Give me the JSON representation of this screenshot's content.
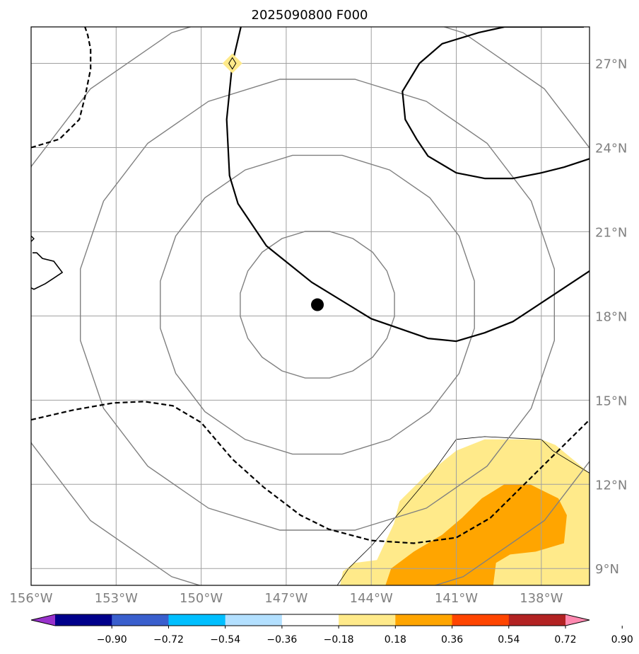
{
  "map": {
    "title": "2025090800 F000",
    "lon_range": [
      -156,
      -136.3
    ],
    "lat_range": [
      8.4,
      28.3
    ],
    "lon_gridlines": [
      -156,
      -153,
      -150,
      -147,
      -144,
      -141,
      -138
    ],
    "lat_gridlines": [
      9,
      12,
      15,
      18,
      21,
      24,
      27
    ],
    "lon_labels": [
      "156°W",
      "153°W",
      "150°W",
      "147°W",
      "144°W",
      "141°W",
      "138°W"
    ],
    "lat_labels": [
      "9°N",
      "12°N",
      "15°N",
      "18°N",
      "21°N",
      "24°N",
      "27°N"
    ],
    "storm_center": {
      "lon": -145.9,
      "lat": 18.4
    },
    "gray_contour_radii_deg": [
      2.7,
      5.5,
      8.3,
      11.1
    ],
    "black_contour_solid": [
      [
        [
          -148.6,
          28.3
        ],
        [
          -148.9,
          27.0
        ],
        [
          -149.1,
          25.0
        ],
        [
          -149.0,
          23.0
        ],
        [
          -148.7,
          22.0
        ],
        [
          -147.7,
          20.5
        ],
        [
          -146.1,
          19.2
        ],
        [
          -144.0,
          17.9
        ],
        [
          -142.0,
          17.2
        ],
        [
          -141.0,
          17.1
        ],
        [
          -140.0,
          17.4
        ],
        [
          -139.0,
          17.8
        ],
        [
          -137.5,
          18.8
        ],
        [
          -136.3,
          19.6
        ]
      ],
      [
        [
          -136.3,
          23.6
        ],
        [
          -137.2,
          23.3
        ],
        [
          -138.0,
          23.1
        ],
        [
          -139.0,
          22.9
        ],
        [
          -140.0,
          22.9
        ],
        [
          -141.0,
          23.1
        ],
        [
          -142.0,
          23.7
        ],
        [
          -142.4,
          24.3
        ],
        [
          -142.8,
          25.0
        ],
        [
          -142.9,
          26.0
        ],
        [
          -142.3,
          27.0
        ],
        [
          -141.5,
          27.7
        ],
        [
          -140.2,
          28.1
        ],
        [
          -139.3,
          28.3
        ],
        [
          -136.5,
          28.3
        ]
      ]
    ],
    "black_contour_dashed": [
      [
        [
          -156.0,
          24.0
        ],
        [
          -155.0,
          24.3
        ],
        [
          -154.3,
          25.0
        ],
        [
          -154.1,
          25.8
        ],
        [
          -153.9,
          26.8
        ],
        [
          -153.9,
          27.5
        ],
        [
          -154.0,
          28.0
        ],
        [
          -154.1,
          28.3
        ]
      ],
      [
        [
          -156.0,
          14.3
        ],
        [
          -154.5,
          14.65
        ],
        [
          -153.1,
          14.9
        ],
        [
          -152.0,
          14.95
        ],
        [
          -151.0,
          14.8
        ],
        [
          -150.0,
          14.2
        ],
        [
          -148.9,
          12.9
        ],
        [
          -147.8,
          11.9
        ],
        [
          -146.5,
          10.9
        ],
        [
          -145.5,
          10.4
        ],
        [
          -144.0,
          10.0
        ],
        [
          -142.5,
          9.9
        ],
        [
          -141.0,
          10.1
        ],
        [
          -139.8,
          10.8
        ],
        [
          -138.8,
          11.8
        ],
        [
          -137.8,
          12.8
        ],
        [
          -136.3,
          14.3
        ]
      ]
    ],
    "shading": [
      {
        "band": "0.18–0.36",
        "color": "#FFEA8A",
        "polygon": [
          [
            -145.1,
            8.4
          ],
          [
            -145.0,
            8.9
          ],
          [
            -144.6,
            9.2
          ],
          [
            -143.8,
            9.3
          ],
          [
            -143.2,
            10.6
          ],
          [
            -143.0,
            11.4
          ],
          [
            -142.1,
            12.3
          ],
          [
            -141.0,
            13.2
          ],
          [
            -140.0,
            13.6
          ],
          [
            -138.0,
            13.6
          ],
          [
            -137.5,
            13.4
          ],
          [
            -136.3,
            12.4
          ],
          [
            -136.3,
            8.4
          ]
        ]
      },
      {
        "band": "0.36–0.54",
        "color": "#FFA500",
        "polygon": [
          [
            -143.5,
            8.4
          ],
          [
            -143.3,
            9.0
          ],
          [
            -142.5,
            9.6
          ],
          [
            -141.5,
            10.2
          ],
          [
            -140.8,
            10.8
          ],
          [
            -140.1,
            11.5
          ],
          [
            -139.3,
            12.0
          ],
          [
            -138.4,
            12.0
          ],
          [
            -137.4,
            11.5
          ],
          [
            -137.1,
            10.9
          ],
          [
            -137.2,
            9.9
          ],
          [
            -138.2,
            9.6
          ],
          [
            -139.1,
            9.5
          ],
          [
            -139.6,
            9.2
          ],
          [
            -139.7,
            8.4
          ]
        ]
      }
    ],
    "thin_contour": [
      [
        -145.2,
        8.4
      ],
      [
        -144.8,
        9.0
      ],
      [
        -144.0,
        9.8
      ],
      [
        -143.0,
        11.0
      ],
      [
        -142.0,
        12.2
      ],
      [
        -141.0,
        13.6
      ],
      [
        -140.0,
        13.7
      ],
      [
        -138.0,
        13.6
      ],
      [
        -137.6,
        13.2
      ],
      [
        -136.3,
        12.4
      ]
    ],
    "island_outline": [
      [
        -155.95,
        20.25
      ],
      [
        -155.8,
        20.25
      ],
      [
        -155.6,
        20.05
      ],
      [
        -155.2,
        19.95
      ],
      [
        -154.9,
        19.55
      ],
      [
        -155.2,
        19.35
      ],
      [
        -155.5,
        19.15
      ],
      [
        -155.9,
        18.95
      ],
      [
        -156.0,
        19.0
      ]
    ],
    "diamond_marker": {
      "lon": -148.9,
      "lat": 27.0,
      "color": "#FFEA8A"
    }
  },
  "colorbar": {
    "tick_labels": [
      "−0.90",
      "−0.72",
      "−0.54",
      "−0.36",
      "−0.18",
      "0.18",
      "0.36",
      "0.54",
      "0.72",
      "0.90"
    ],
    "colors": [
      "#9932CC",
      "#00008B",
      "#3A5FCD",
      "#00BFFF",
      "#B3E0FF",
      "#FFFFFF",
      "#FFEA8A",
      "#FFA500",
      "#FF4500",
      "#B22222",
      "#FF89B0"
    ]
  }
}
